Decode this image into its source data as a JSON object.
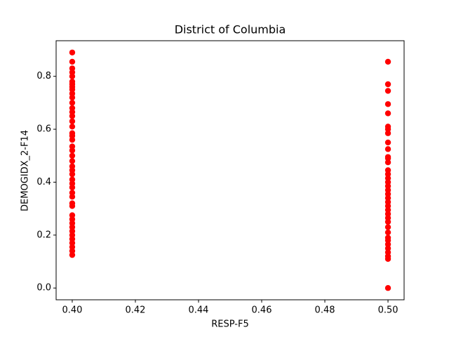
{
  "chart_data": {
    "type": "scatter",
    "title": "District of Columbia",
    "x_label": "RESP-F5",
    "y_label": "DEMOGIDX_2-F14",
    "color": "#ff0000",
    "grid": false,
    "xlim": [
      0.3949,
      0.5051
    ],
    "ylim": [
      -0.0445,
      0.9345
    ],
    "xticks": [
      {
        "value": 0.4,
        "label": "0.40"
      },
      0.42,
      0.44,
      0.46,
      0.48,
      {
        "value": 0.5,
        "label": "0.50"
      }
    ],
    "yticks": [
      {
        "value": 0,
        "label": "0.0"
      },
      0.2,
      0.4,
      0.6,
      0.8
    ],
    "x": [
      0.4,
      0.4,
      0.4,
      0.4,
      0.4,
      0.4,
      0.4,
      0.4,
      0.4,
      0.4,
      0.4,
      0.4,
      0.4,
      0.4,
      0.4,
      0.4,
      0.4,
      0.4,
      0.4,
      0.4,
      0.4,
      0.4,
      0.4,
      0.4,
      0.4,
      0.4,
      0.4,
      0.4,
      0.4,
      0.4,
      0.4,
      0.4,
      0.4,
      0.4,
      0.4,
      0.4,
      0.4,
      0.4,
      0.4,
      0.4,
      0.4,
      0.4,
      0.4,
      0.4,
      0.4,
      0.5,
      0.5,
      0.5,
      0.5,
      0.5,
      0.5,
      0.5,
      0.5,
      0.5,
      0.5,
      0.5,
      0.5,
      0.5,
      0.5,
      0.5,
      0.5,
      0.5,
      0.5,
      0.5,
      0.5,
      0.5,
      0.5,
      0.5,
      0.5,
      0.5,
      0.5,
      0.5,
      0.5,
      0.5,
      0.5,
      0.5,
      0.5,
      0.5,
      0.5,
      0.5,
      0.5,
      0.5
    ],
    "y": [
      0.89,
      0.855,
      0.83,
      0.815,
      0.8,
      0.78,
      0.77,
      0.76,
      0.75,
      0.735,
      0.72,
      0.7,
      0.68,
      0.665,
      0.65,
      0.63,
      0.61,
      0.585,
      0.575,
      0.56,
      0.535,
      0.52,
      0.5,
      0.48,
      0.46,
      0.445,
      0.43,
      0.41,
      0.395,
      0.38,
      0.36,
      0.345,
      0.32,
      0.31,
      0.275,
      0.26,
      0.245,
      0.23,
      0.215,
      0.2,
      0.185,
      0.17,
      0.155,
      0.14,
      0.125,
      0.855,
      0.77,
      0.745,
      0.695,
      0.66,
      0.61,
      0.6,
      0.585,
      0.55,
      0.525,
      0.495,
      0.49,
      0.475,
      0.445,
      0.43,
      0.415,
      0.4,
      0.385,
      0.37,
      0.355,
      0.34,
      0.325,
      0.31,
      0.295,
      0.28,
      0.265,
      0.25,
      0.23,
      0.21,
      0.19,
      0.18,
      0.165,
      0.15,
      0.135,
      0.12,
      0.11,
      0
    ]
  }
}
